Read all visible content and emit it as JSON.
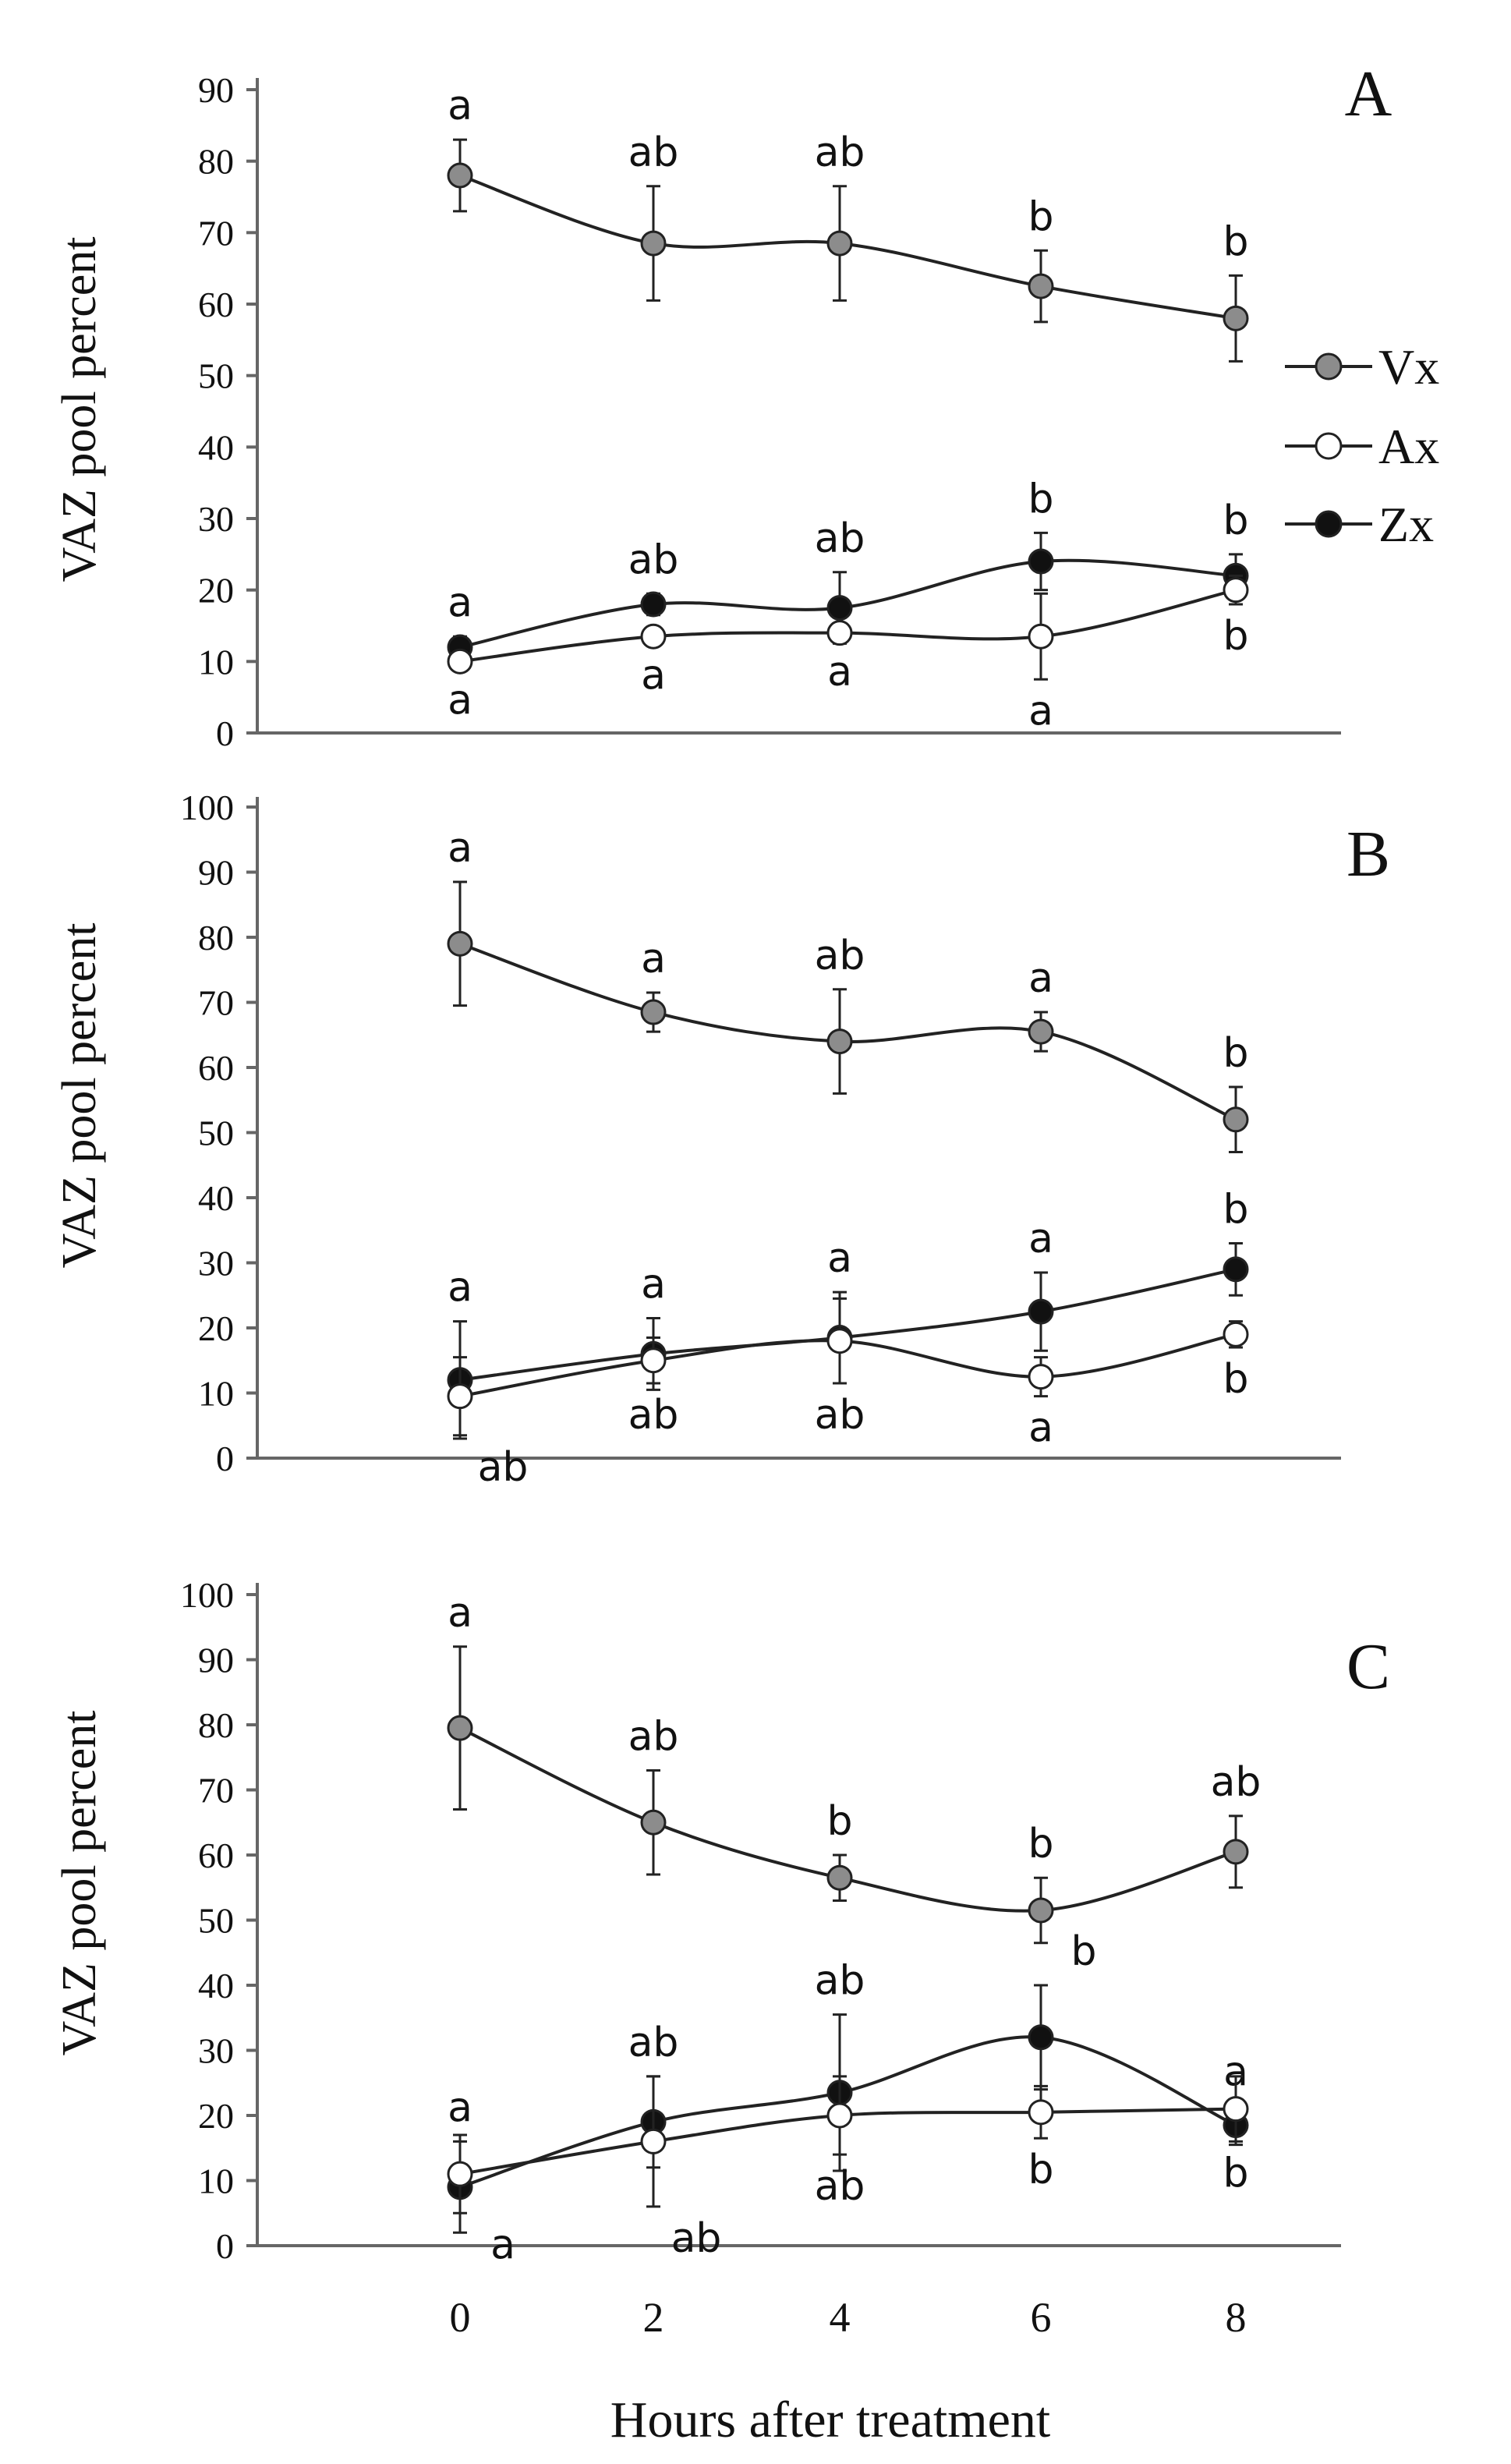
{
  "chart_data": [
    {
      "type": "line",
      "panel": "A",
      "ylabel": "VAZ pool percent",
      "xlabel": "",
      "x": [
        0,
        2,
        4,
        6,
        8
      ],
      "ylim": [
        0,
        90
      ],
      "yticks": [
        0,
        10,
        20,
        30,
        40,
        50,
        60,
        70,
        80,
        90
      ],
      "xticks": [],
      "series": [
        {
          "name": "Vx",
          "marker": "gray",
          "values": [
            78,
            68.5,
            68.5,
            62.5,
            58
          ],
          "errors": [
            5,
            8,
            8,
            5,
            6
          ],
          "letters": [
            "a",
            "ab",
            "ab",
            "b",
            "b"
          ],
          "letter_pos": [
            "above",
            "above",
            "above",
            "above",
            "above"
          ]
        },
        {
          "name": "Zx",
          "marker": "black",
          "values": [
            12,
            18,
            17.5,
            24,
            22
          ],
          "errors": [
            1.5,
            1.5,
            5,
            4,
            3
          ],
          "letters": [
            "a",
            "ab",
            "ab",
            "b",
            "b"
          ],
          "letter_pos": [
            "above",
            "above",
            "above",
            "above",
            "above"
          ]
        },
        {
          "name": "Ax",
          "marker": "white",
          "values": [
            10,
            13.5,
            14,
            13.5,
            20
          ],
          "errors": [
            1,
            1,
            1,
            6,
            2
          ],
          "letters": [
            "a",
            "a",
            "a",
            "a",
            "b"
          ],
          "letter_pos": [
            "below",
            "below",
            "below",
            "below",
            "below"
          ]
        }
      ]
    },
    {
      "type": "line",
      "panel": "B",
      "ylabel": "VAZ pool percent",
      "xlabel": "",
      "x": [
        0,
        2,
        4,
        6,
        8
      ],
      "ylim": [
        0,
        100
      ],
      "yticks": [
        0,
        10,
        20,
        30,
        40,
        50,
        60,
        70,
        80,
        90,
        100
      ],
      "xticks": [],
      "series": [
        {
          "name": "Vx",
          "marker": "gray",
          "values": [
            79,
            68.5,
            64,
            65.5,
            52
          ],
          "errors": [
            9.5,
            3,
            8,
            3,
            5
          ],
          "letters": [
            "a",
            "a",
            "ab",
            "a",
            "b"
          ],
          "letter_pos": [
            "above",
            "above",
            "above",
            "above",
            "above"
          ]
        },
        {
          "name": "Zx",
          "marker": "black",
          "values": [
            12,
            16,
            18.5,
            22.5,
            29
          ],
          "errors": [
            9,
            5.5,
            7,
            6,
            4
          ],
          "letters": [
            "a",
            "a",
            "a",
            "a",
            "b"
          ],
          "letter_pos": [
            "above",
            "above",
            "above",
            "above",
            "above"
          ]
        },
        {
          "name": "Ax",
          "marker": "white",
          "values": [
            9.5,
            15,
            18,
            12.5,
            19
          ],
          "errors": [
            6,
            3.5,
            6.5,
            3,
            2
          ],
          "letters": [
            "ab",
            "ab",
            "ab",
            "a",
            "b"
          ],
          "letter_pos": [
            "below-right",
            "below",
            "below",
            "below",
            "below"
          ]
        }
      ]
    },
    {
      "type": "line",
      "panel": "C",
      "ylabel": "VAZ pool percent",
      "xlabel": "Hours after treatment",
      "x": [
        0,
        2,
        4,
        6,
        8
      ],
      "ylim": [
        0,
        100
      ],
      "yticks": [
        0,
        10,
        20,
        30,
        40,
        50,
        60,
        70,
        80,
        90,
        100
      ],
      "xticks": [
        0,
        2,
        4,
        6,
        8
      ],
      "series": [
        {
          "name": "Vx",
          "marker": "gray",
          "values": [
            79.5,
            65,
            56.5,
            51.5,
            60.5
          ],
          "errors": [
            12.5,
            8,
            3.5,
            5,
            5.5
          ],
          "letters": [
            "a",
            "ab",
            "b",
            "b",
            "ab"
          ],
          "letter_pos": [
            "above",
            "above",
            "above",
            "above",
            "above"
          ]
        },
        {
          "name": "Zx",
          "marker": "black",
          "values": [
            9,
            19,
            23.5,
            32,
            18.5
          ],
          "errors": [
            7,
            7,
            12,
            8,
            3
          ],
          "letters": [
            "a",
            "ab",
            "ab",
            "b",
            "a"
          ],
          "letter_pos": [
            "above",
            "above",
            "above",
            "above-right",
            "above"
          ]
        },
        {
          "name": "Ax",
          "marker": "white",
          "values": [
            11,
            16,
            20,
            20.5,
            21
          ],
          "errors": [
            6,
            10,
            6,
            4,
            5
          ],
          "letters": [
            "a",
            "ab",
            "ab",
            "b",
            "b"
          ],
          "letter_pos": [
            "below-right",
            "below-right",
            "below",
            "below",
            "below"
          ]
        }
      ]
    }
  ],
  "legend": [
    {
      "name": "Vx",
      "marker": "gray"
    },
    {
      "name": "Ax",
      "marker": "white"
    },
    {
      "name": "Zx",
      "marker": "black"
    }
  ],
  "colors": {
    "gray_marker": "#8c8c8c",
    "black_marker": "#111111",
    "white_marker": "#ffffff",
    "line": "#222222",
    "axis": "#666666"
  }
}
